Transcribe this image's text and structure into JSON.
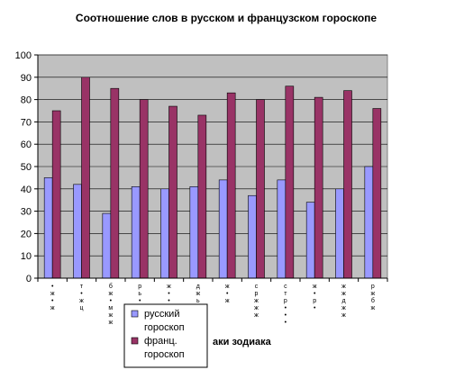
{
  "chart_data": {
    "type": "bar",
    "title": "Соотношение слов в русском и французском гороскопе",
    "xlabel": "аки зодиака",
    "ylabel": "",
    "ylim": [
      0,
      100
    ],
    "yticks": [
      0,
      10,
      20,
      30,
      40,
      50,
      60,
      70,
      80,
      90,
      100
    ],
    "grid": true,
    "plot_background": "#c0c0c0",
    "legend_position": "bottom-left, overlapping axis labels",
    "categories": [
      [
        "•",
        "ж",
        "•",
        "ж"
      ],
      [
        "т",
        "•",
        "ж",
        "ц"
      ],
      [
        "б",
        "ж",
        "•",
        "м",
        "ж",
        "ж"
      ],
      [
        "р",
        "ь",
        "•",
        "ь"
      ],
      [
        "ж",
        "•",
        "•",
        "ь"
      ],
      [
        "д",
        "ж",
        "ь"
      ],
      [
        "ж",
        "•",
        "ж"
      ],
      [
        "с",
        "р",
        "ж",
        "ж",
        "ж"
      ],
      [
        "с",
        "т",
        "р",
        "•",
        "•",
        "•"
      ],
      [
        "ж",
        "•",
        "р",
        "•"
      ],
      [
        "ж",
        "ж",
        "д",
        "ж",
        "ж"
      ],
      [
        "р",
        "ж",
        "б",
        "ж"
      ]
    ],
    "series": [
      {
        "name": "русский гороскоп",
        "legend_lines": [
          "русский",
          "гороскоп"
        ],
        "color": "#9999ff",
        "values": [
          45,
          42,
          29,
          41,
          40,
          41,
          44,
          37,
          44,
          34,
          40,
          50
        ]
      },
      {
        "name": "франц. гороскоп",
        "legend_lines": [
          "франц.",
          "гороскоп"
        ],
        "color": "#993366",
        "values": [
          75,
          90,
          85,
          80,
          77,
          73,
          83,
          80,
          86,
          81,
          84,
          76
        ]
      }
    ]
  }
}
